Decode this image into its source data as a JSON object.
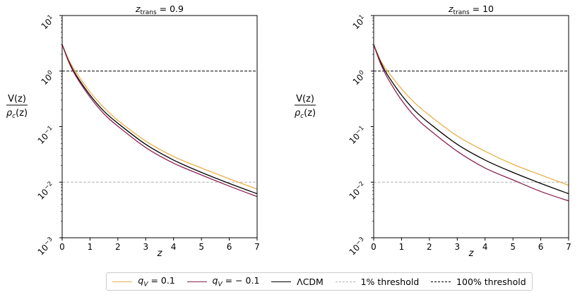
{
  "chart_data": {
    "type": "line",
    "ylabel_top": "V(z)",
    "ylabel_bottom": "ρ",
    "ylabel_bottom_sub": "c",
    "ylabel_bottom_arg": "(z)",
    "xlabel": "z",
    "xlim": [
      0,
      7
    ],
    "ylim_log10": [
      -3,
      1
    ],
    "xticks": [
      "0",
      "1",
      "2",
      "3",
      "4",
      "5",
      "6",
      "7"
    ],
    "yticks": [
      {
        "base": "10",
        "exp": "−3"
      },
      {
        "base": "10",
        "exp": "−2"
      },
      {
        "base": "10",
        "exp": "−1"
      },
      {
        "base": "10",
        "exp": "0"
      },
      {
        "base": "10",
        "exp": "1"
      }
    ],
    "thresholds": [
      {
        "name": "1% threshold",
        "y": 0.01,
        "color": "#b3b3b3",
        "dash": "dashed"
      },
      {
        "name": "100% threshold",
        "y": 1.0,
        "color": "#000000",
        "dash": "dashed"
      }
    ],
    "panels": [
      {
        "title_var": "z",
        "title_sub": "trans",
        "title_value": "= 0.9",
        "series": [
          {
            "name": "q_V = 0.1",
            "color": "#e8b04a",
            "x": [
              0,
              0.25,
              0.5,
              1,
              1.5,
              2,
              3,
              4,
              5,
              6,
              7
            ],
            "y": [
              3.0,
              1.55,
              0.95,
              0.42,
              0.22,
              0.13,
              0.055,
              0.029,
              0.018,
              0.0115,
              0.0075
            ]
          },
          {
            "name": "ΛCDM",
            "color": "#000000",
            "x": [
              0,
              0.25,
              0.5,
              1,
              1.5,
              2,
              3,
              4,
              5,
              6,
              7
            ],
            "y": [
              3.0,
              1.45,
              0.85,
              0.37,
              0.19,
              0.115,
              0.048,
              0.025,
              0.015,
              0.0095,
              0.0062
            ]
          },
          {
            "name": "q_V = −0.1",
            "color": "#8b2252",
            "x": [
              0,
              0.25,
              0.5,
              1,
              1.5,
              2,
              3,
              4,
              5,
              6,
              7
            ],
            "y": [
              3.0,
              1.4,
              0.8,
              0.34,
              0.17,
              0.102,
              0.042,
              0.022,
              0.0135,
              0.0085,
              0.0055
            ]
          }
        ]
      },
      {
        "title_var": "z",
        "title_sub": "trans",
        "title_value": "= 10",
        "series": [
          {
            "name": "q_V = 0.1",
            "color": "#e8b04a",
            "x": [
              0,
              0.25,
              0.5,
              1,
              1.5,
              2,
              3,
              4,
              5,
              6,
              7
            ],
            "y": [
              3.0,
              1.55,
              1.0,
              0.48,
              0.26,
              0.16,
              0.068,
              0.036,
              0.021,
              0.0135,
              0.0088
            ]
          },
          {
            "name": "ΛCDM",
            "color": "#000000",
            "x": [
              0,
              0.25,
              0.5,
              1,
              1.5,
              2,
              3,
              4,
              5,
              6,
              7
            ],
            "y": [
              3.0,
              1.45,
              0.85,
              0.37,
              0.19,
              0.115,
              0.048,
              0.025,
              0.015,
              0.0095,
              0.0062
            ]
          },
          {
            "name": "q_V = −0.1",
            "color": "#8b2252",
            "x": [
              0,
              0.25,
              0.5,
              1,
              1.5,
              2,
              3,
              4,
              5,
              6,
              7
            ],
            "y": [
              3.0,
              1.35,
              0.75,
              0.3,
              0.148,
              0.088,
              0.036,
              0.018,
              0.011,
              0.0068,
              0.0046
            ]
          }
        ]
      }
    ]
  },
  "legend": [
    {
      "id": "qv-pos",
      "math_var": "q",
      "math_sub": "V",
      "text": " = 0.1",
      "color": "#e8b04a",
      "dash": "solid"
    },
    {
      "id": "qv-neg",
      "math_var": "q",
      "math_sub": "V",
      "text": " = − 0.1",
      "color": "#8b2252",
      "dash": "solid"
    },
    {
      "id": "lcdm",
      "math_var": "",
      "math_sub": "",
      "text": "ΛCDM",
      "color": "#000000",
      "dash": "solid"
    },
    {
      "id": "one-pct",
      "math_var": "",
      "math_sub": "",
      "text": "1% threshold",
      "color": "#b3b3b3",
      "dash": "dashed"
    },
    {
      "id": "hundred-pct",
      "math_var": "",
      "math_sub": "",
      "text": "100% threshold",
      "color": "#000000",
      "dash": "dashed"
    }
  ]
}
